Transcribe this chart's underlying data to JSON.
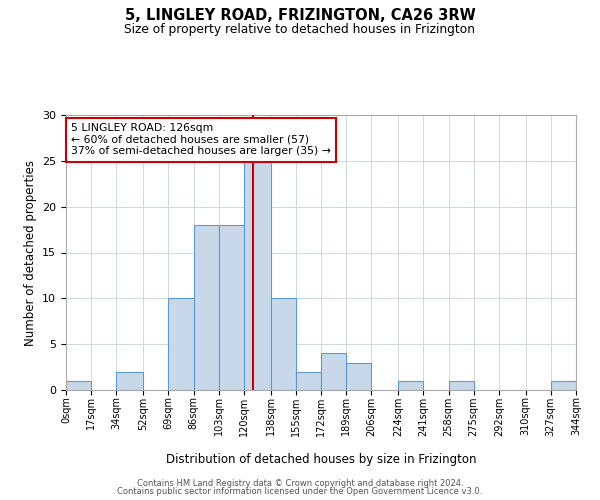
{
  "title": "5, LINGLEY ROAD, FRIZINGTON, CA26 3RW",
  "subtitle": "Size of property relative to detached houses in Frizington",
  "xlabel": "Distribution of detached houses by size in Frizington",
  "ylabel": "Number of detached properties",
  "bin_edges": [
    0,
    17,
    34,
    52,
    69,
    86,
    103,
    120,
    138,
    155,
    172,
    189,
    206,
    224,
    241,
    258,
    275,
    292,
    310,
    327,
    344
  ],
  "bar_heights": [
    1,
    0,
    2,
    0,
    10,
    18,
    18,
    25,
    10,
    2,
    4,
    3,
    0,
    1,
    0,
    1,
    0,
    0,
    0,
    1
  ],
  "bar_color": "#c8d8e8",
  "bar_edge_color": "#5b9bd5",
  "property_line_x": 126,
  "property_line_color": "#cc0000",
  "ylim": [
    0,
    30
  ],
  "yticks": [
    0,
    5,
    10,
    15,
    20,
    25,
    30
  ],
  "annotation_title": "5 LINGLEY ROAD: 126sqm",
  "annotation_line1": "← 60% of detached houses are smaller (57)",
  "annotation_line2": "37% of semi-detached houses are larger (35) →",
  "annotation_box_color": "#ffffff",
  "annotation_box_edge": "#cc0000",
  "footer_line1": "Contains HM Land Registry data © Crown copyright and database right 2024.",
  "footer_line2": "Contains public sector information licensed under the Open Government Licence v3.0.",
  "background_color": "#ffffff",
  "grid_color": "#d0d8e0"
}
